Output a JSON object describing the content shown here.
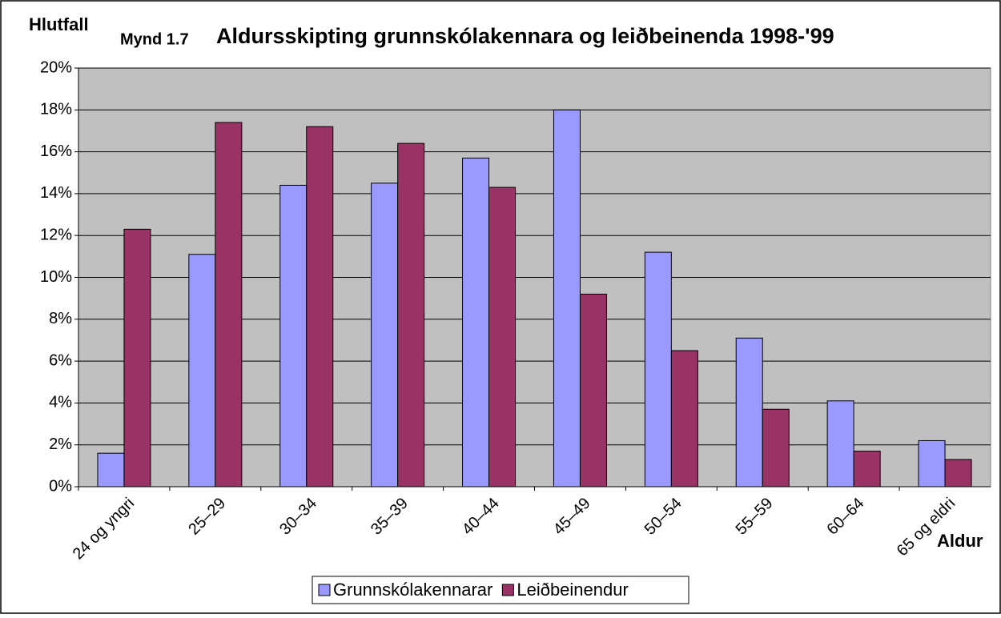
{
  "chart_data": {
    "type": "bar",
    "figure_label": "Mynd 1.7",
    "title": "Aldursskipting grunnskólakennara og leiðbeinenda 1998-'99",
    "y_label": "Hlutfall",
    "x_label": "Aldur",
    "categories": [
      "24 og yngri",
      "25–29",
      "30–34",
      "35–39",
      "40–44",
      "45–49",
      "50–54",
      "55–59",
      "60–64",
      "65 og eldri"
    ],
    "series": [
      {
        "name": "Grunnskólakennarar",
        "color": "#9999ff",
        "values": [
          1.6,
          11.1,
          14.4,
          14.5,
          15.7,
          18.0,
          11.2,
          7.1,
          4.1,
          2.2
        ]
      },
      {
        "name": "Leiðbeinendur",
        "color": "#993366",
        "values": [
          12.3,
          17.4,
          17.2,
          16.4,
          14.3,
          9.2,
          6.5,
          3.7,
          1.7,
          1.3
        ]
      }
    ],
    "ylim": [
      0,
      20
    ],
    "yticks": [
      {
        "value": 0,
        "label": "0%"
      },
      {
        "value": 2,
        "label": "2%"
      },
      {
        "value": 4,
        "label": "4%"
      },
      {
        "value": 6,
        "label": "6%"
      },
      {
        "value": 8,
        "label": "8%"
      },
      {
        "value": 10,
        "label": "10%"
      },
      {
        "value": 12,
        "label": "12%"
      },
      {
        "value": 14,
        "label": "14%"
      },
      {
        "value": 16,
        "label": "16%"
      },
      {
        "value": 18,
        "label": "18%"
      },
      {
        "value": 20,
        "label": "20%"
      }
    ],
    "grid": true,
    "legend": "bottom"
  }
}
